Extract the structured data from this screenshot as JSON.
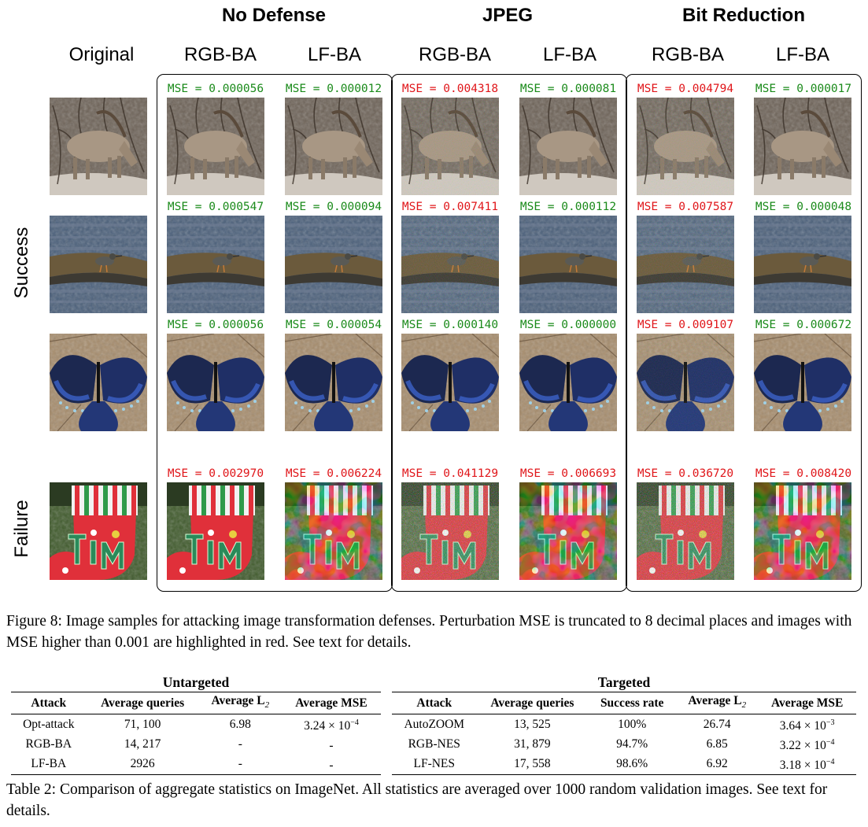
{
  "figure": {
    "group_titles": [
      "No Defense",
      "JPEG",
      "Bit Reduction"
    ],
    "column_headers": [
      "Original",
      "RGB-BA",
      "LF-BA",
      "RGB-BA",
      "LF-BA",
      "RGB-BA",
      "LF-BA"
    ],
    "row_labels": {
      "success": "Success",
      "failure": "Failure"
    },
    "colors": {
      "ok": "#1a8a1a",
      "bad": "#e0161a"
    },
    "rows": [
      {
        "scene": "ibex",
        "mse": [
          {
            "text": "MSE = 0.000056",
            "status": "ok"
          },
          {
            "text": "MSE = 0.000012",
            "status": "ok"
          },
          {
            "text": "MSE = 0.004318",
            "status": "bad"
          },
          {
            "text": "MSE = 0.000081",
            "status": "ok"
          },
          {
            "text": "MSE = 0.004794",
            "status": "bad"
          },
          {
            "text": "MSE = 0.000017",
            "status": "ok"
          }
        ]
      },
      {
        "scene": "bird-water",
        "mse": [
          {
            "text": "MSE = 0.000547",
            "status": "ok"
          },
          {
            "text": "MSE = 0.000094",
            "status": "ok"
          },
          {
            "text": "MSE = 0.007411",
            "status": "bad"
          },
          {
            "text": "MSE = 0.000112",
            "status": "ok"
          },
          {
            "text": "MSE = 0.007587",
            "status": "bad"
          },
          {
            "text": "MSE = 0.000048",
            "status": "ok"
          }
        ]
      },
      {
        "scene": "butterfly",
        "mse": [
          {
            "text": "MSE = 0.000056",
            "status": "ok"
          },
          {
            "text": "MSE = 0.000054",
            "status": "ok"
          },
          {
            "text": "MSE = 0.000140",
            "status": "ok"
          },
          {
            "text": "MSE = 0.000000",
            "status": "ok"
          },
          {
            "text": "MSE = 0.009107",
            "status": "bad"
          },
          {
            "text": "MSE = 0.000672",
            "status": "ok"
          }
        ]
      },
      {
        "scene": "stocking",
        "mse": [
          {
            "text": "MSE = 0.002970",
            "status": "bad"
          },
          {
            "text": "MSE = 0.006224",
            "status": "bad"
          },
          {
            "text": "MSE = 0.041129",
            "status": "bad"
          },
          {
            "text": "MSE = 0.006693",
            "status": "bad"
          },
          {
            "text": "MSE = 0.036720",
            "status": "bad"
          },
          {
            "text": "MSE = 0.008420",
            "status": "bad"
          }
        ]
      }
    ],
    "caption": "Figure 8: Image samples for attacking image transformation defenses. Perturbation MSE is truncated to 8 decimal places and images with MSE higher than 0.001 are highlighted in red. See text for details."
  },
  "table": {
    "untargeted": {
      "title": "Untargeted",
      "headers": [
        "Attack",
        "Average queries",
        "Average L",
        "Average MSE"
      ],
      "l2_sub": "2",
      "rows": [
        {
          "attack": "Opt-attack",
          "queries": "71, 100",
          "l2": "6.98",
          "mse_base": "3.24 × 10",
          "mse_exp": "−4"
        },
        {
          "attack": "RGB-BA",
          "queries": "14, 217",
          "l2": "-",
          "mse_base": "-",
          "mse_exp": ""
        },
        {
          "attack": "LF-BA",
          "queries": "2926",
          "l2": "-",
          "mse_base": "-",
          "mse_exp": ""
        }
      ]
    },
    "targeted": {
      "title": "Targeted",
      "headers": [
        "Attack",
        "Average queries",
        "Success rate",
        "Average L",
        "Average MSE"
      ],
      "l2_sub": "2",
      "rows": [
        {
          "attack": "AutoZOOM",
          "queries": "13, 525",
          "success": "100%",
          "l2": "26.74",
          "mse_base": "3.64 × 10",
          "mse_exp": "−3"
        },
        {
          "attack": "RGB-NES",
          "queries": "31, 879",
          "success": "94.7%",
          "l2": "6.85",
          "mse_base": "3.22 × 10",
          "mse_exp": "−4"
        },
        {
          "attack": "LF-NES",
          "queries": "17, 558",
          "success": "98.6%",
          "l2": "6.92",
          "mse_base": "3.18 × 10",
          "mse_exp": "−4"
        }
      ]
    },
    "caption": "Table 2: Comparison of aggregate statistics on ImageNet. All statistics are averaged over 1000 random validation images. See text for details."
  }
}
